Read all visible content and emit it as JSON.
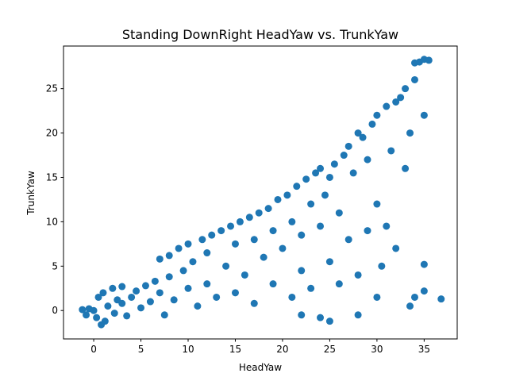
{
  "chart_data": {
    "type": "scatter",
    "title": "Standing DownRight HeadYaw vs. TrunkYaw",
    "xlabel": "HeadYaw",
    "ylabel": "TrunkYaw",
    "xlim": [
      -3.2,
      38.5
    ],
    "ylim": [
      -3.2,
      29.8
    ],
    "xticks": [
      0,
      5,
      10,
      15,
      20,
      25,
      30,
      35
    ],
    "yticks": [
      0,
      5,
      10,
      15,
      20,
      25
    ],
    "marker_color": "#1f77b4",
    "grid": false,
    "series": [
      {
        "points": [
          [
            -1.2,
            0.1
          ],
          [
            -0.8,
            -0.5
          ],
          [
            -0.5,
            0.2
          ],
          [
            0,
            0
          ],
          [
            0.3,
            -0.8
          ],
          [
            0.5,
            1.5
          ],
          [
            0.8,
            -1.6
          ],
          [
            1,
            2
          ],
          [
            1.2,
            -1.2
          ],
          [
            1.5,
            0.5
          ],
          [
            2,
            2.5
          ],
          [
            2.2,
            -0.3
          ],
          [
            2.5,
            1.2
          ],
          [
            3,
            0.8
          ],
          [
            3,
            2.7
          ],
          [
            3.5,
            -0.6
          ],
          [
            4,
            1.5
          ],
          [
            4.5,
            2.2
          ],
          [
            5,
            0.3
          ],
          [
            5.5,
            2.8
          ],
          [
            6,
            1
          ],
          [
            6.5,
            3.3
          ],
          [
            7,
            5.8
          ],
          [
            7,
            2
          ],
          [
            7.5,
            -0.5
          ],
          [
            8,
            6.2
          ],
          [
            8,
            3.8
          ],
          [
            8.5,
            1.2
          ],
          [
            9,
            7
          ],
          [
            9.5,
            4.5
          ],
          [
            10,
            7.5
          ],
          [
            10,
            2.5
          ],
          [
            10.5,
            5.5
          ],
          [
            11,
            0.5
          ],
          [
            11.5,
            8
          ],
          [
            12,
            6.5
          ],
          [
            12,
            3
          ],
          [
            12.5,
            8.5
          ],
          [
            13,
            1.5
          ],
          [
            13.5,
            9
          ],
          [
            14,
            5
          ],
          [
            14.5,
            9.5
          ],
          [
            15,
            7.5
          ],
          [
            15,
            2
          ],
          [
            15.5,
            10
          ],
          [
            16,
            4
          ],
          [
            16.5,
            10.5
          ],
          [
            17,
            8
          ],
          [
            17,
            0.8
          ],
          [
            17.5,
            11
          ],
          [
            18,
            6
          ],
          [
            18.5,
            11.5
          ],
          [
            19,
            9
          ],
          [
            19,
            3
          ],
          [
            19.5,
            12.5
          ],
          [
            20,
            7
          ],
          [
            20.5,
            13
          ],
          [
            21,
            10
          ],
          [
            21,
            1.5
          ],
          [
            21.5,
            14
          ],
          [
            22,
            8.5
          ],
          [
            22,
            4.5
          ],
          [
            22.5,
            14.8
          ],
          [
            23,
            12
          ],
          [
            23,
            2.5
          ],
          [
            23.5,
            15.5
          ],
          [
            24,
            16
          ],
          [
            24,
            9.5
          ],
          [
            24.5,
            13
          ],
          [
            25,
            15
          ],
          [
            25,
            5.5
          ],
          [
            25.5,
            16.5
          ],
          [
            26,
            11
          ],
          [
            26,
            3
          ],
          [
            26.5,
            17.5
          ],
          [
            27,
            18.5
          ],
          [
            27,
            8
          ],
          [
            27.5,
            15.5
          ],
          [
            28,
            20
          ],
          [
            28,
            4
          ],
          [
            28.5,
            19.5
          ],
          [
            29,
            17
          ],
          [
            29,
            9
          ],
          [
            29.5,
            21
          ],
          [
            30,
            22
          ],
          [
            30,
            12
          ],
          [
            30.5,
            5
          ],
          [
            31,
            23
          ],
          [
            31,
            9.5
          ],
          [
            31.5,
            18
          ],
          [
            32,
            23.5
          ],
          [
            32,
            7
          ],
          [
            32.5,
            24
          ],
          [
            33,
            25
          ],
          [
            33,
            16
          ],
          [
            33.5,
            20
          ],
          [
            34,
            27.9
          ],
          [
            34,
            26
          ],
          [
            34.5,
            28
          ],
          [
            35,
            28.3
          ],
          [
            35,
            22
          ],
          [
            35.5,
            28.2
          ],
          [
            35,
            5.2
          ],
          [
            34,
            1.5
          ],
          [
            35,
            2.2
          ],
          [
            36.8,
            1.3
          ],
          [
            33.5,
            0.5
          ],
          [
            30,
            1.5
          ],
          [
            28,
            -0.5
          ],
          [
            25,
            -1.2
          ],
          [
            24,
            -0.8
          ],
          [
            22,
            -0.5
          ]
        ]
      }
    ]
  }
}
